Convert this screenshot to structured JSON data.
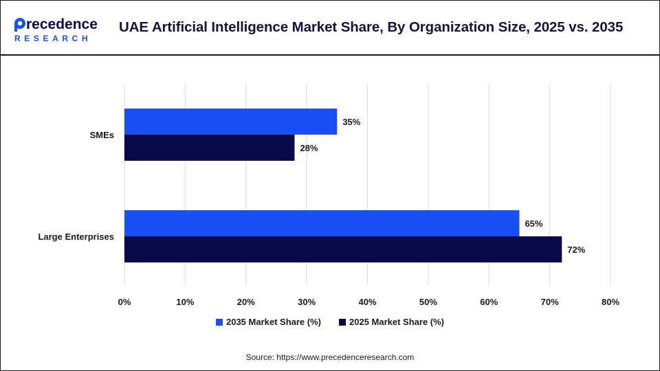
{
  "brand": {
    "logo_text": "Precedence",
    "logo_subtext": "RESEARCH"
  },
  "title": "UAE Artificial Intelligence Market Share, By Organization Size, 2025 vs. 2035",
  "source": "Source: https://www.precedenceresearch.com",
  "colors": {
    "series_2035": "#1a4ff5",
    "series_2025": "#0a0a4a",
    "title": "#14143c",
    "grid": "#d9d9d9"
  },
  "chart_data": {
    "type": "bar",
    "orientation": "horizontal",
    "categories": [
      "SMEs",
      "Large Enterprises"
    ],
    "series": [
      {
        "name": "2035 Market Share (%)",
        "values": [
          35,
          65
        ],
        "labels": [
          "35%",
          "65%"
        ]
      },
      {
        "name": "2025 Market Share (%)",
        "values": [
          28,
          72
        ],
        "labels": [
          "28%",
          "72%"
        ]
      }
    ],
    "xlim": [
      0,
      80
    ],
    "xticks": [
      "0%",
      "10%",
      "20%",
      "30%",
      "40%",
      "50%",
      "60%",
      "70%",
      "80%"
    ],
    "grid": "vertical",
    "legend": "bottom"
  }
}
